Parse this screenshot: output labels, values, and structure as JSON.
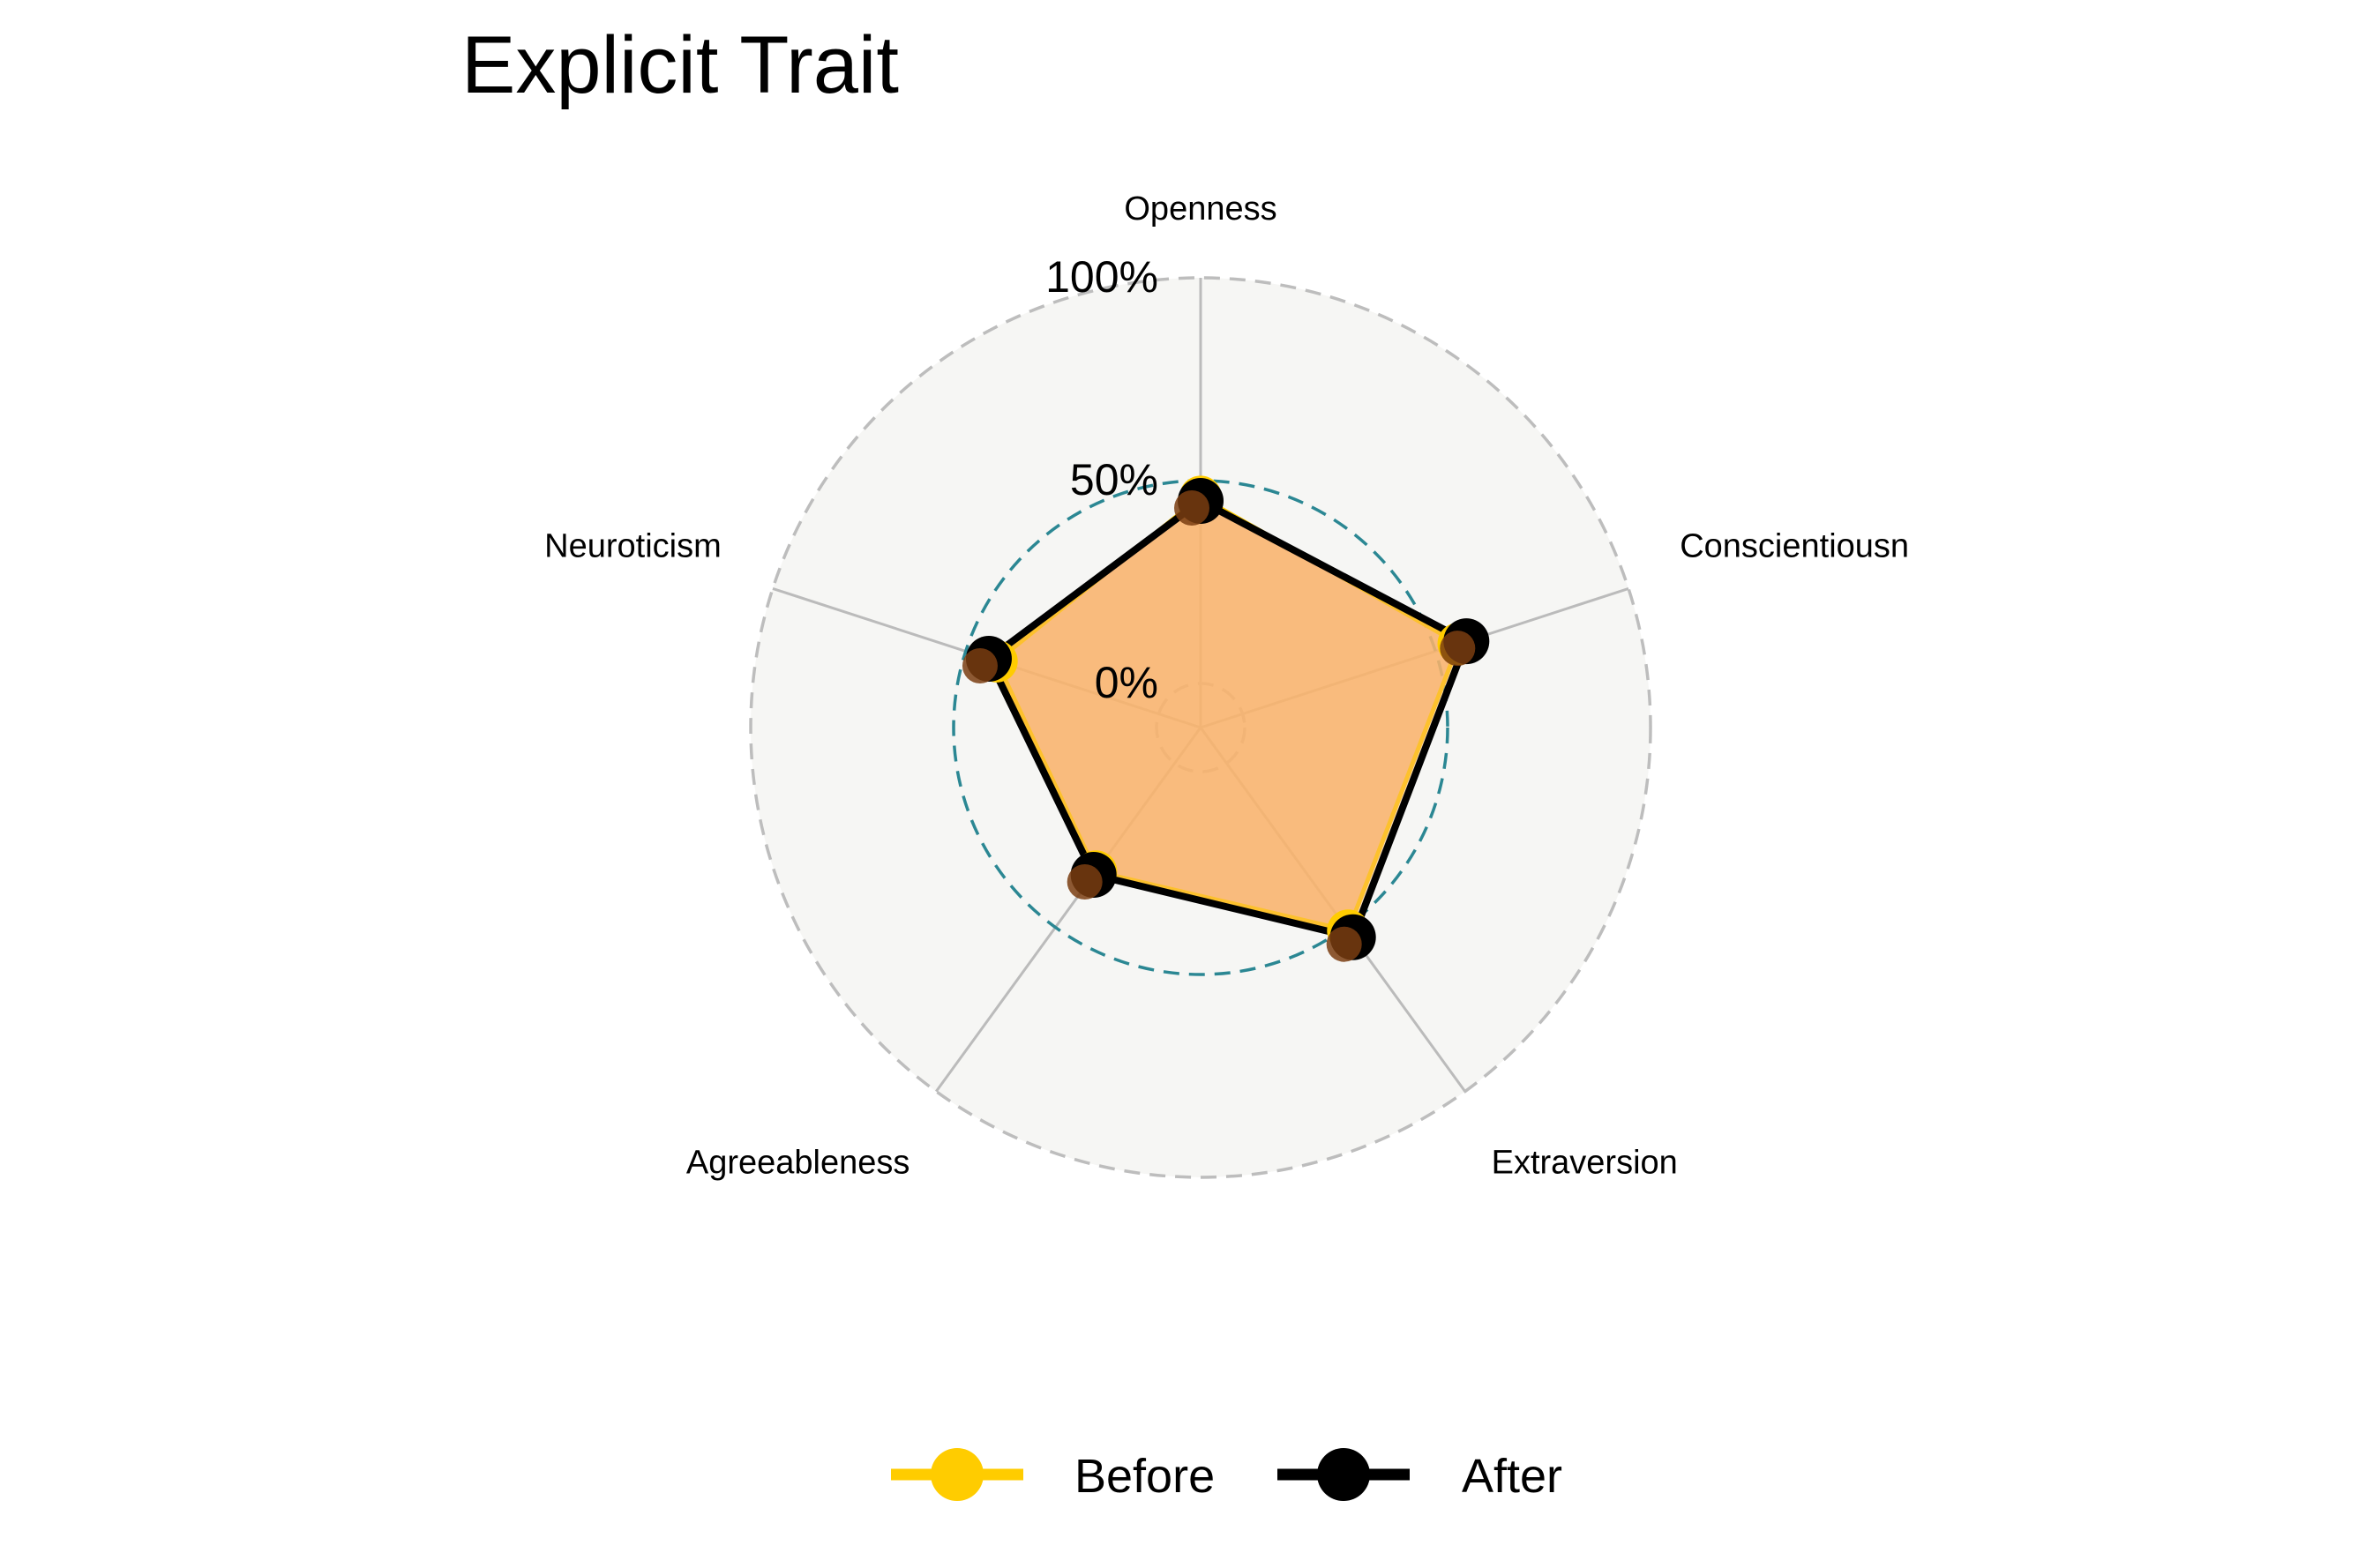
{
  "chart_data": {
    "type": "radar",
    "title": "Explicit Trait",
    "axes": [
      "Openness",
      "Conscientiousn",
      "Extraversion",
      "Agreeableness",
      "Neuroticism"
    ],
    "grid_labels": [
      "0%",
      "50%",
      "100%"
    ],
    "range": [
      0,
      100
    ],
    "series": [
      {
        "name": "Before",
        "values": [
          46,
          56,
          51,
          33,
          42
        ]
      },
      {
        "name": "After",
        "values": [
          45,
          58,
          53,
          34,
          44
        ]
      }
    ],
    "legend_position": "bottom",
    "colors": {
      "before": "#FFCC00",
      "after": "#000000",
      "fill": "#FAB36B",
      "panel": "#F6F6F4",
      "spokes": "#BBBBBB",
      "outer_grid": "#BDBDBD",
      "mid_grid": "#2B8793"
    }
  }
}
